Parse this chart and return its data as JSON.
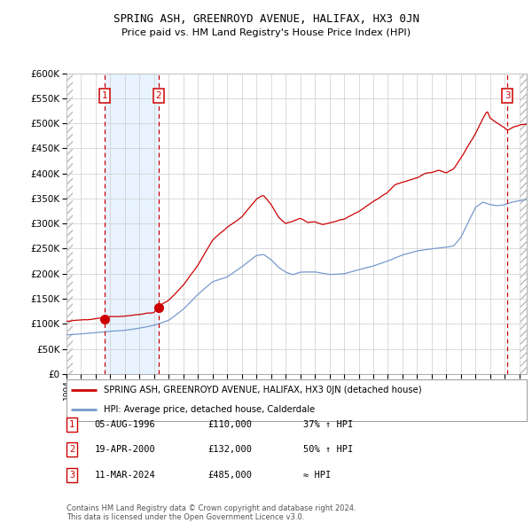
{
  "title": "SPRING ASH, GREENROYD AVENUE, HALIFAX, HX3 0JN",
  "subtitle": "Price paid vs. HM Land Registry's House Price Index (HPI)",
  "legend_line1": "SPRING ASH, GREENROYD AVENUE, HALIFAX, HX3 0JN (detached house)",
  "legend_line2": "HPI: Average price, detached house, Calderdale",
  "table": [
    {
      "num": 1,
      "date": "05-AUG-1996",
      "price": "£110,000",
      "note": "37% ↑ HPI"
    },
    {
      "num": 2,
      "date": "19-APR-2000",
      "price": "£132,000",
      "note": "50% ↑ HPI"
    },
    {
      "num": 3,
      "date": "11-MAR-2024",
      "price": "£485,000",
      "note": "≈ HPI"
    }
  ],
  "footer": "Contains HM Land Registry data © Crown copyright and database right 2024.\nThis data is licensed under the Open Government Licence v3.0.",
  "sale1_year": 1996.59,
  "sale1_price": 110000,
  "sale2_year": 2000.3,
  "sale2_price": 132000,
  "sale3_year": 2024.19,
  "sale3_price": 485000,
  "ylim": [
    0,
    600000
  ],
  "xlim_start": 1994.0,
  "xlim_end": 2025.5,
  "background_color": "#ffffff",
  "grid_color": "#cccccc",
  "hatch_color": "#bbbbbb",
  "red_line_color": "#cc0000",
  "blue_line_color": "#7799cc",
  "shade_color": "#ddeeff",
  "marker_color": "#cc0000",
  "box_edge_color": "#cc0000"
}
